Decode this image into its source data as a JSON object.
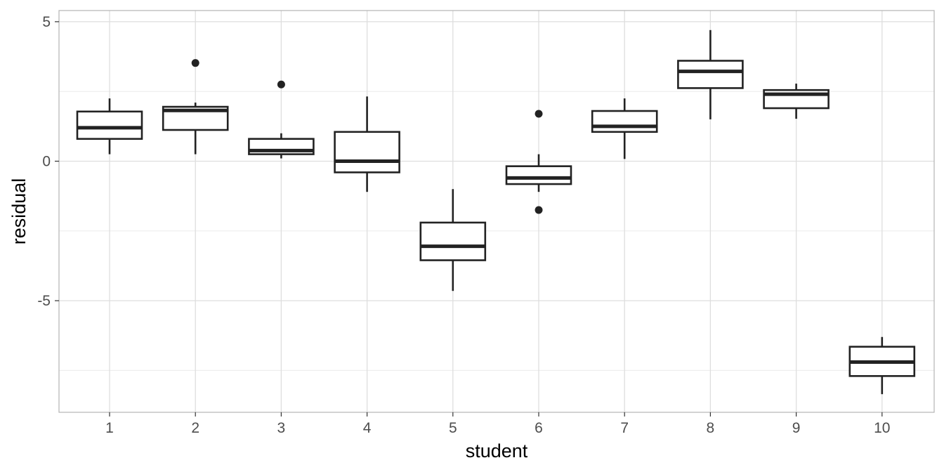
{
  "chart_data": {
    "type": "boxplot",
    "xlabel": "student",
    "ylabel": "residual",
    "categories": [
      "1",
      "2",
      "3",
      "4",
      "5",
      "6",
      "7",
      "8",
      "9",
      "10"
    ],
    "ylim": [
      -9.0,
      5.4
    ],
    "y_ticks": [
      5,
      0,
      -5
    ],
    "y_tick_labels": [
      "5",
      "0",
      "-5"
    ],
    "y_minor_ticks": [
      2.5,
      -2.5,
      -7.5
    ],
    "grid": true,
    "theme": "light",
    "color": "#222222",
    "boxes": [
      {
        "category": "1",
        "whisker_low": 0.25,
        "q1": 0.8,
        "median": 1.2,
        "q3": 1.78,
        "whisker_high": 2.25,
        "outliers": []
      },
      {
        "category": "2",
        "whisker_low": 0.25,
        "q1": 1.12,
        "median": 1.82,
        "q3": 1.95,
        "whisker_high": 2.1,
        "outliers": [
          3.52
        ]
      },
      {
        "category": "3",
        "whisker_low": 0.1,
        "q1": 0.25,
        "median": 0.38,
        "q3": 0.8,
        "whisker_high": 1.0,
        "outliers": [
          2.75
        ]
      },
      {
        "category": "4",
        "whisker_low": -1.1,
        "q1": -0.4,
        "median": 0.0,
        "q3": 1.05,
        "whisker_high": 2.32,
        "outliers": []
      },
      {
        "category": "5",
        "whisker_low": -4.65,
        "q1": -3.55,
        "median": -3.05,
        "q3": -2.2,
        "whisker_high": -1.0,
        "outliers": []
      },
      {
        "category": "6",
        "whisker_low": -1.1,
        "q1": -0.82,
        "median": -0.6,
        "q3": -0.18,
        "whisker_high": 0.25,
        "outliers": [
          1.7,
          -1.75
        ]
      },
      {
        "category": "7",
        "whisker_low": 0.08,
        "q1": 1.05,
        "median": 1.25,
        "q3": 1.8,
        "whisker_high": 2.25,
        "outliers": []
      },
      {
        "category": "8",
        "whisker_low": 1.5,
        "q1": 2.62,
        "median": 3.22,
        "q3": 3.6,
        "whisker_high": 4.7,
        "outliers": []
      },
      {
        "category": "9",
        "whisker_low": 1.52,
        "q1": 1.9,
        "median": 2.4,
        "q3": 2.55,
        "whisker_high": 2.78,
        "outliers": []
      },
      {
        "category": "10",
        "whisker_low": -8.35,
        "q1": -7.7,
        "median": -7.2,
        "q3": -6.65,
        "whisker_high": -6.3,
        "outliers": []
      }
    ]
  }
}
